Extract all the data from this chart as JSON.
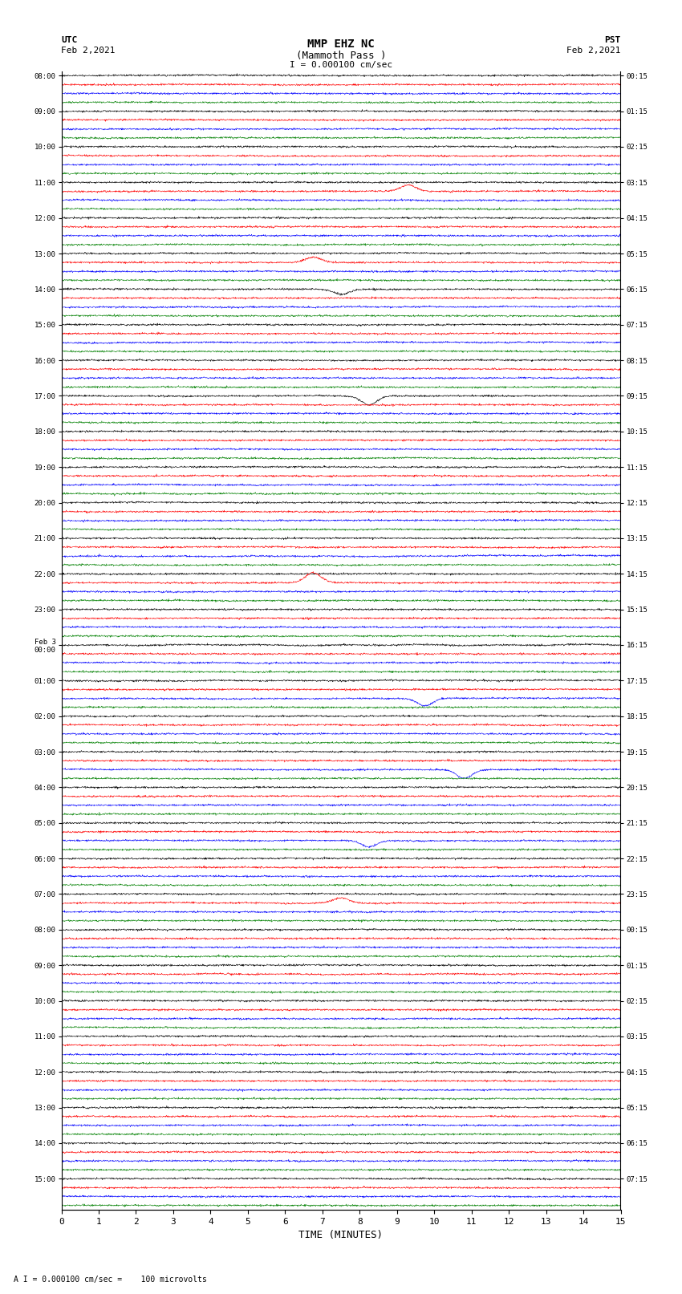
{
  "title_line1": "MMP EHZ NC",
  "title_line2": "(Mammoth Pass )",
  "scale_label": "I = 0.000100 cm/sec",
  "bottom_label": "A I = 0.000100 cm/sec =    100 microvolts",
  "xlabel": "TIME (MINUTES)",
  "colors": [
    "black",
    "red",
    "blue",
    "green"
  ],
  "n_rows": 32,
  "traces_per_row": 4,
  "minutes": 15,
  "utc_row_labels": [
    "08:00",
    "09:00",
    "10:00",
    "11:00",
    "12:00",
    "13:00",
    "14:00",
    "15:00",
    "16:00",
    "17:00",
    "18:00",
    "19:00",
    "20:00",
    "21:00",
    "22:00",
    "23:00",
    "Feb 3\n00:00",
    "01:00",
    "02:00",
    "03:00",
    "04:00",
    "05:00",
    "06:00",
    "07:00",
    "08:00",
    "09:00",
    "10:00",
    "11:00",
    "12:00",
    "13:00",
    "14:00",
    "15:00"
  ],
  "pst_row_labels": [
    "00:15",
    "01:15",
    "02:15",
    "03:15",
    "04:15",
    "05:15",
    "06:15",
    "07:15",
    "08:15",
    "09:15",
    "10:15",
    "11:15",
    "12:15",
    "13:15",
    "14:15",
    "15:15",
    "16:15",
    "17:15",
    "18:15",
    "19:15",
    "20:15",
    "21:15",
    "22:15",
    "23:15",
    "00:15",
    "01:15",
    "02:15",
    "03:15",
    "04:15",
    "05:15",
    "06:15",
    "07:15"
  ],
  "noise_seed": 42,
  "amplitude_scale": 0.28,
  "fig_width": 8.5,
  "fig_height": 16.13,
  "dpi": 100,
  "bg_color": "white",
  "linewidth": 0.4
}
